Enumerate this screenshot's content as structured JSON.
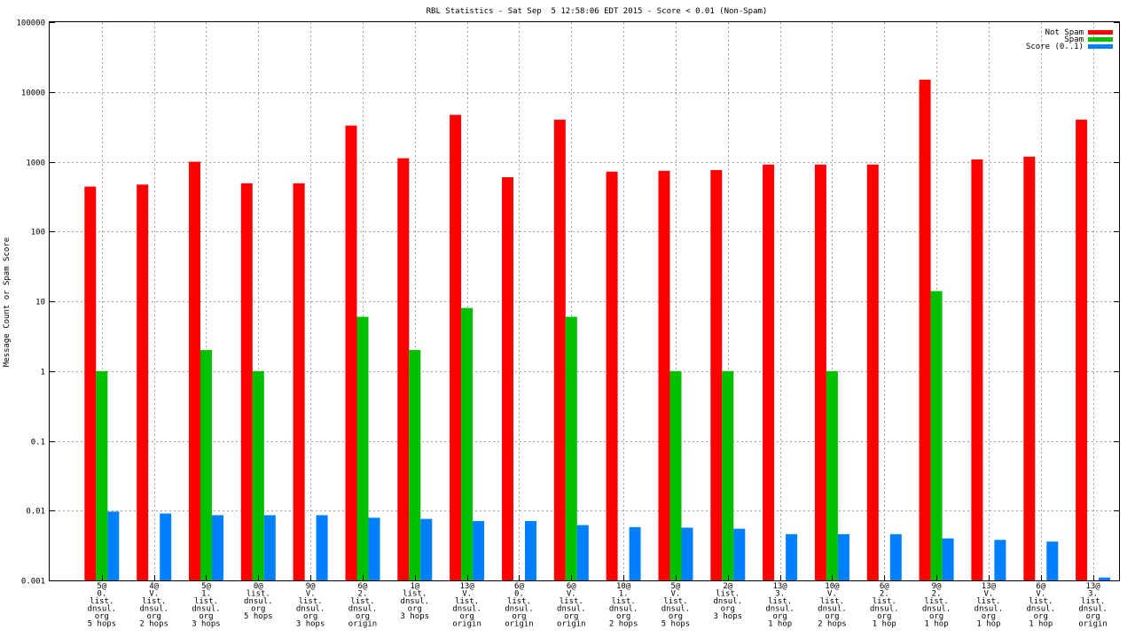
{
  "chart_data": {
    "type": "bar",
    "title": "RBL Statistics - Sat Sep  5 12:58:06 EDT 2015 - Score < 0.01 (Non-Spam)",
    "xlabel": "",
    "ylabel": "Message Count or Spam Score",
    "yscale": "log",
    "ylim": [
      0.001,
      100000
    ],
    "y_tick_labels": [
      "0.001",
      "0.01",
      "0.1",
      "1",
      "10",
      "100",
      "1000",
      "10000",
      "100000"
    ],
    "grid": true,
    "legend_position": "top-right",
    "categories": [
      [
        "5@",
        "0.",
        "list.",
        "dnsul.",
        "org",
        "5 hops"
      ],
      [
        "4@",
        "V.",
        "list.",
        "dnsul.",
        "org",
        "2 hops"
      ],
      [
        "5@",
        "1.",
        "list.",
        "dnsul.",
        "org",
        "3 hops"
      ],
      [
        "0@",
        "list.",
        "dnsul.",
        "org",
        "5 hops"
      ],
      [
        "9@",
        "V.",
        "list.",
        "dnsul.",
        "org",
        "3 hops"
      ],
      [
        "6@",
        "2.",
        "list.",
        "dnsul.",
        "org",
        "origin"
      ],
      [
        "1@",
        "list.",
        "dnsul.",
        "org",
        "3 hops"
      ],
      [
        "13@",
        "V.",
        "list.",
        "dnsul.",
        "org",
        "origin"
      ],
      [
        "6@",
        "0.",
        "list.",
        "dnsul.",
        "org",
        "origin"
      ],
      [
        "6@",
        "V.",
        "list.",
        "dnsul.",
        "org",
        "origin"
      ],
      [
        "10@",
        "1.",
        "list.",
        "dnsul.",
        "org",
        "2 hops"
      ],
      [
        "5@",
        "V.",
        "list.",
        "dnsul.",
        "org",
        "5 hops"
      ],
      [
        "2@",
        "list.",
        "dnsul.",
        "org",
        "3 hops"
      ],
      [
        "13@",
        "3.",
        "list.",
        "dnsul.",
        "org",
        "1 hop"
      ],
      [
        "10@",
        "V.",
        "list.",
        "dnsul.",
        "org",
        "2 hops"
      ],
      [
        "6@",
        "2.",
        "list.",
        "dnsul.",
        "org",
        "1 hop"
      ],
      [
        "9@",
        "2.",
        "list.",
        "dnsul.",
        "org",
        "1 hop"
      ],
      [
        "13@",
        "V.",
        "list.",
        "dnsul.",
        "org",
        "1 hop"
      ],
      [
        "6@",
        "V.",
        "list.",
        "dnsul.",
        "org",
        "1 hop"
      ],
      [
        "13@",
        "3.",
        "list.",
        "dnsul.",
        "org",
        "origin"
      ]
    ],
    "series": [
      {
        "name": "Not Spam",
        "color": "#ff0000",
        "values": [
          440,
          470,
          1000,
          490,
          490,
          3300,
          1120,
          4700,
          600,
          4000,
          720,
          740,
          760,
          910,
          910,
          910,
          15000,
          1080,
          1180,
          4000
        ]
      },
      {
        "name": "Spam",
        "color": "#00c000",
        "values": [
          1,
          null,
          2,
          1,
          null,
          6,
          2,
          8,
          null,
          6,
          null,
          1,
          1,
          null,
          1,
          null,
          14,
          null,
          null,
          null
        ]
      },
      {
        "name": "Score (0..1)",
        "color": "#0080ff",
        "values": [
          0.0097,
          0.0091,
          0.0086,
          0.0086,
          0.0086,
          0.0079,
          0.0076,
          0.0071,
          0.0071,
          0.0062,
          0.0058,
          0.0057,
          0.0055,
          0.0046,
          0.0046,
          0.0046,
          0.004,
          0.0038,
          0.0036,
          0.0011
        ]
      }
    ]
  }
}
